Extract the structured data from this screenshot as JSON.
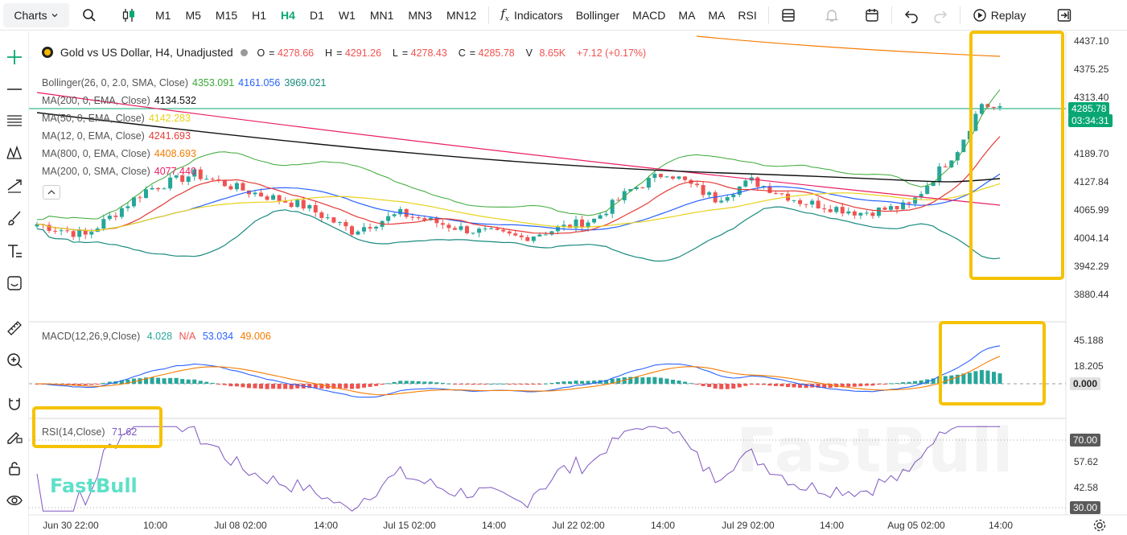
{
  "toolbar": {
    "charts_label": "Charts",
    "timeframes": [
      "M1",
      "M5",
      "M15",
      "H1",
      "H4",
      "D1",
      "W1",
      "MN1",
      "MN3",
      "MN12"
    ],
    "active_timeframe": "H4",
    "indicators_label": "Indicators",
    "indicator_shortcuts": [
      "Bollinger",
      "MACD",
      "MA",
      "MA",
      "RSI"
    ],
    "replay_label": "Replay"
  },
  "symbol": {
    "title": "Gold vs US Dollar, H4, Unadjusted",
    "open_label": "O",
    "open": "4278.66",
    "high_label": "H",
    "high": "4291.26",
    "low_label": "L",
    "low": "4278.43",
    "close_label": "C",
    "close": "4285.78",
    "volume_label": "V",
    "volume": "8.65K",
    "change": "+7.12 (+0.17%)"
  },
  "studies": [
    {
      "name": "Bollinger(26, 0, 2.0, SMA, Close)",
      "values": [
        "4353.091",
        "4161.056",
        "3969.021"
      ],
      "colors": [
        "#3aa836",
        "#2962ff",
        "#178a7e"
      ]
    },
    {
      "name": "MA(200, 0, EMA, Close)",
      "values": [
        "4134.532"
      ],
      "colors": [
        "#111111"
      ]
    },
    {
      "name": "MA(50, 0, EMA, Close)",
      "values": [
        "4142.283"
      ],
      "colors": [
        "#e8d21a"
      ]
    },
    {
      "name": "MA(12, 0, EMA, Close)",
      "values": [
        "4241.693"
      ],
      "colors": [
        "#e53935"
      ]
    },
    {
      "name": "MA(800, 0, EMA, Close)",
      "values": [
        "4408.693"
      ],
      "colors": [
        "#f57c00"
      ]
    },
    {
      "name": "MA(200, 0, SMA, Close)",
      "values": [
        "4077.440"
      ],
      "colors": [
        "#e91e63"
      ]
    }
  ],
  "price_axis": {
    "ticks": [
      "4437.10",
      "4375.25",
      "4313.40",
      "4189.70",
      "4127.84",
      "4065.99",
      "4004.14",
      "3942.29",
      "3880.44"
    ],
    "last_price": "4285.78",
    "countdown": "03:34:31"
  },
  "macd": {
    "name": "MACD(12,26,9,Close)",
    "values": [
      "4.028",
      "N/A",
      "53.034",
      "49.006"
    ],
    "colors": [
      "#26a69a",
      "#ef5350",
      "#2962ff",
      "#f57c00"
    ],
    "ticks": [
      "45.188",
      "18.205",
      "0.000"
    ]
  },
  "rsi": {
    "name": "RSI(14,Close)",
    "value": "71.62",
    "ticks": [
      "70.00",
      "57.62",
      "42.58",
      "30.00"
    ]
  },
  "time_axis": [
    "Jun 30 22:00",
    "10:00",
    "Jul 08 02:00",
    "14:00",
    "Jul 15 02:00",
    "14:00",
    "Jul 22 02:00",
    "14:00",
    "Jul 29 02:00",
    "14:00",
    "Aug 05 02:00",
    "14:00"
  ],
  "watermark": "FastBull",
  "colors": {
    "up": "#26a69a",
    "down": "#ef5350",
    "accent": "#0aa774",
    "highlight": "#f5c200"
  }
}
